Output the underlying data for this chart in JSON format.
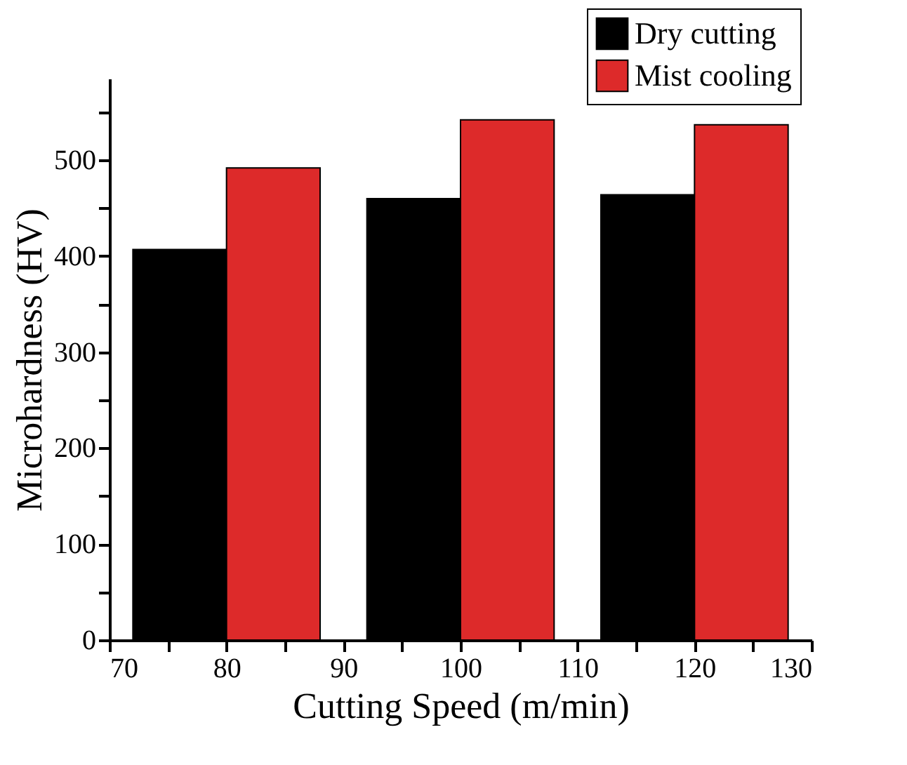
{
  "chart_data": {
    "type": "bar",
    "xlabel": "Cutting Speed (m/min)",
    "ylabel": "Microhardness (HV)",
    "x": [
      80,
      100,
      120
    ],
    "series": [
      {
        "name": "Dry cutting",
        "color": "#000000",
        "values": [
          407,
          460,
          464
        ]
      },
      {
        "name": "Mist cooling",
        "color": "#dd2a2a",
        "values": [
          492,
          542,
          537
        ]
      }
    ],
    "xlim": [
      70,
      130
    ],
    "xticks": [
      70,
      {
        "value": 75,
        "label": null
      },
      80,
      {
        "value": 85,
        "label": null
      },
      90,
      {
        "value": 95,
        "label": null
      },
      100,
      {
        "value": 105,
        "label": null
      },
      110,
      {
        "value": 115,
        "label": null
      },
      120,
      {
        "value": 125,
        "label": null
      },
      130
    ],
    "ylim": [
      0,
      585
    ],
    "yticks": [
      0,
      {
        "value": 50,
        "label": null
      },
      100,
      {
        "value": 150,
        "label": null
      },
      200,
      {
        "value": 250,
        "label": null
      },
      300,
      {
        "value": 350,
        "label": null
      },
      400,
      {
        "value": 450,
        "label": null
      },
      500,
      {
        "value": 550,
        "label": null
      }
    ],
    "grid": false,
    "legend": "top right"
  }
}
